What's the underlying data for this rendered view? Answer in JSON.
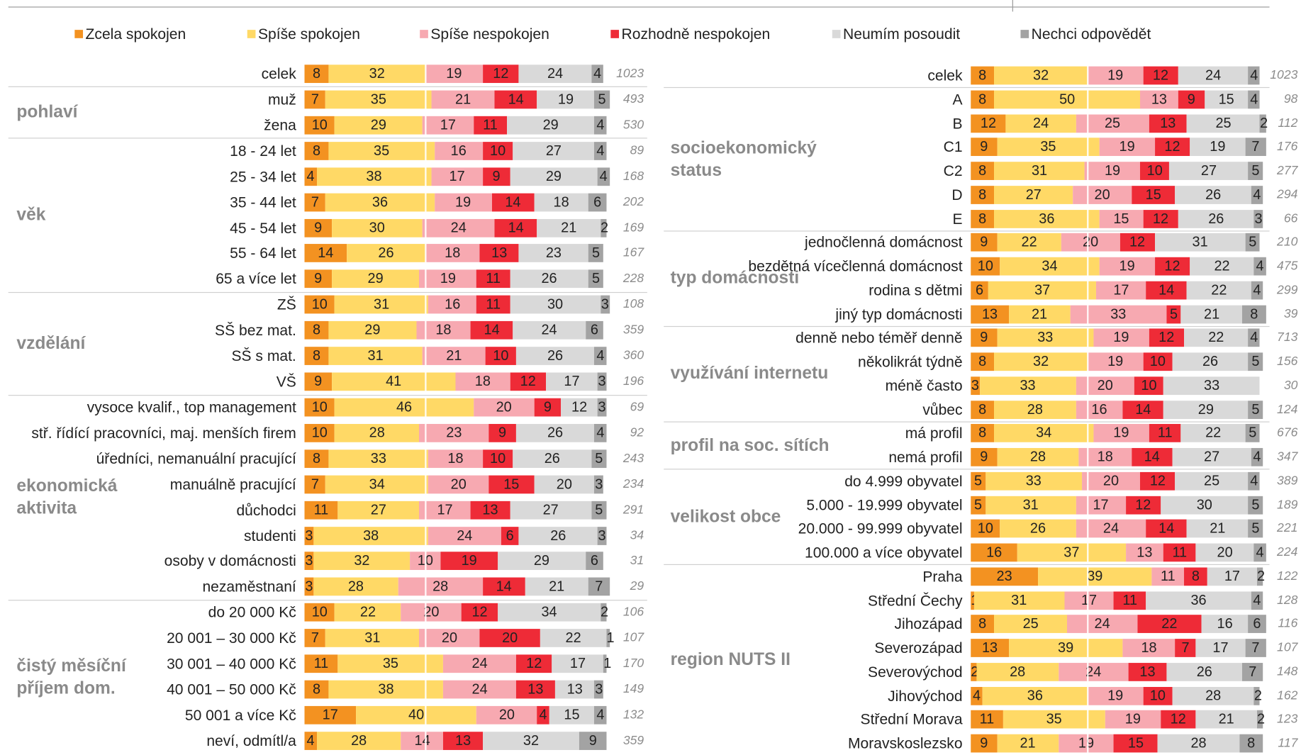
{
  "chart_data": [
    {
      "type": "bar",
      "stacked": true,
      "orientation": "horizontal",
      "xlim": [
        0,
        100
      ],
      "reference_line": 40,
      "series": [
        {
          "name": "Zcela spokojen",
          "color": "#f39221",
          "values": [
            8,
            7,
            10,
            8,
            4,
            7,
            9,
            14,
            9,
            10,
            8,
            8,
            9,
            10,
            10,
            8,
            7,
            11,
            3,
            3,
            3,
            10,
            7,
            11,
            8,
            17,
            4
          ]
        },
        {
          "name": "Spíše spokojen",
          "color": "#ffd966",
          "values": [
            32,
            35,
            29,
            35,
            38,
            36,
            30,
            26,
            29,
            31,
            29,
            31,
            41,
            46,
            28,
            33,
            34,
            27,
            38,
            32,
            28,
            22,
            31,
            35,
            38,
            40,
            28
          ]
        },
        {
          "name": "Spíše nespokojen",
          "color": "#f7a9b1",
          "values": [
            19,
            21,
            17,
            16,
            17,
            19,
            24,
            18,
            19,
            16,
            18,
            21,
            18,
            20,
            23,
            18,
            20,
            17,
            24,
            10,
            28,
            20,
            20,
            24,
            24,
            20,
            14
          ]
        },
        {
          "name": "Rozhodně nespokojen",
          "color": "#ee2b37",
          "values": [
            12,
            14,
            11,
            10,
            9,
            14,
            14,
            13,
            11,
            11,
            14,
            10,
            12,
            9,
            9,
            10,
            15,
            13,
            6,
            19,
            14,
            12,
            20,
            12,
            13,
            4,
            13
          ]
        },
        {
          "name": "Neumím posoudit",
          "color": "#d9d9d9",
          "values": [
            24,
            19,
            29,
            27,
            29,
            18,
            21,
            23,
            26,
            30,
            24,
            26,
            17,
            12,
            26,
            26,
            20,
            27,
            26,
            29,
            21,
            34,
            22,
            17,
            13,
            15,
            32
          ]
        },
        {
          "name": "Nechci odpovědět",
          "color": "#a3a3a3",
          "values": [
            4,
            5,
            4,
            4,
            4,
            6,
            2,
            5,
            5,
            3,
            6,
            4,
            3,
            3,
            4,
            5,
            3,
            5,
            3,
            6,
            7,
            2,
            1,
            1,
            3,
            4,
            9
          ]
        }
      ],
      "categories": [
        "celek",
        "muž",
        "žena",
        "18 - 24 let",
        "25 - 34 let",
        "35 - 44 let",
        "45 - 54 let",
        "55 - 64 let",
        "65 a více let",
        "ZŠ",
        "SŠ bez mat.",
        "SŠ s mat.",
        "VŠ",
        "vysoce kvalif., top management",
        "stř. řídící pracovníci, maj. menších firem",
        "úředníci, nemanuální pracující",
        "manuálně pracující",
        "důchodci",
        "studenti",
        "osoby v domácnosti",
        "nezaměstnaní",
        "do 20 000 Kč",
        "20 001 – 30 000 Kč",
        "30 001 – 40 000 Kč",
        "40 001 – 50 000 Kč",
        "50 001 a více Kč",
        "neví, odmítl/a"
      ],
      "n": [
        1023,
        493,
        530,
        89,
        168,
        202,
        169,
        167,
        228,
        108,
        359,
        360,
        196,
        69,
        92,
        243,
        234,
        291,
        34,
        31,
        29,
        106,
        107,
        170,
        149,
        132,
        359
      ],
      "groups": [
        {
          "label": null,
          "count": 1
        },
        {
          "label": "pohlaví",
          "count": 2
        },
        {
          "label": "věk",
          "count": 6
        },
        {
          "label": "vzdělání",
          "count": 4
        },
        {
          "label": "ekonomická aktivita",
          "count": 8
        },
        {
          "label": "čistý měsíční příjem dom.",
          "count": 6
        }
      ]
    },
    {
      "type": "bar",
      "stacked": true,
      "orientation": "horizontal",
      "xlim": [
        0,
        100
      ],
      "reference_line": 40,
      "series": [
        {
          "name": "Zcela spokojen",
          "color": "#f39221",
          "values": [
            8,
            8,
            12,
            9,
            8,
            8,
            8,
            9,
            10,
            6,
            13,
            9,
            8,
            3,
            8,
            8,
            9,
            5,
            5,
            10,
            16,
            23,
            1,
            8,
            13,
            2,
            4,
            11,
            9
          ]
        },
        {
          "name": "Spíše spokojen",
          "color": "#ffd966",
          "values": [
            32,
            50,
            24,
            35,
            31,
            27,
            36,
            22,
            34,
            37,
            21,
            33,
            32,
            33,
            28,
            34,
            28,
            33,
            31,
            26,
            37,
            39,
            31,
            25,
            39,
            28,
            36,
            35,
            21
          ]
        },
        {
          "name": "Spíše nespokojen",
          "color": "#f7a9b1",
          "values": [
            19,
            13,
            25,
            19,
            19,
            20,
            15,
            20,
            19,
            17,
            33,
            19,
            19,
            20,
            16,
            19,
            18,
            20,
            17,
            24,
            13,
            11,
            17,
            24,
            18,
            24,
            19,
            19,
            19
          ]
        },
        {
          "name": "Rozhodně nespokojen",
          "color": "#ee2b37",
          "values": [
            12,
            9,
            13,
            12,
            10,
            15,
            12,
            12,
            12,
            14,
            5,
            12,
            10,
            10,
            14,
            11,
            14,
            12,
            12,
            14,
            11,
            8,
            11,
            22,
            7,
            13,
            10,
            12,
            15
          ]
        },
        {
          "name": "Neumím posoudit",
          "color": "#d9d9d9",
          "values": [
            24,
            15,
            25,
            19,
            27,
            26,
            26,
            31,
            22,
            22,
            21,
            22,
            26,
            33,
            29,
            22,
            27,
            25,
            30,
            21,
            20,
            17,
            36,
            16,
            17,
            26,
            28,
            21,
            28
          ]
        },
        {
          "name": "Nechci odpovědět",
          "color": "#a3a3a3",
          "values": [
            4,
            4,
            2,
            7,
            5,
            4,
            3,
            5,
            4,
            4,
            8,
            4,
            5,
            null,
            5,
            5,
            4,
            4,
            5,
            5,
            4,
            2,
            4,
            6,
            7,
            7,
            2,
            2,
            8
          ]
        }
      ],
      "categories": [
        "celek",
        "A",
        "B",
        "C1",
        "C2",
        "D",
        "E",
        "jednočlenná domácnost",
        "bezdětná vícečlenná domácnost",
        "rodina s dětmi",
        "jiný typ domácnosti",
        "denně nebo téměř denně",
        "několikrát týdně",
        "méně často",
        "vůbec",
        "má profil",
        "nemá profil",
        "do 4.999 obyvatel",
        "5.000 - 19.999 obyvatel",
        "20.000 - 99.999 obyvatel",
        "100.000 a více obyvatel",
        "Praha",
        "Střední Čechy",
        "Jihozápad",
        "Severozápad",
        "Severovýchod",
        "Jihovýchod",
        "Střední Morava",
        "Moravskoslezsko"
      ],
      "n": [
        1023,
        98,
        112,
        176,
        277,
        294,
        66,
        210,
        475,
        299,
        39,
        713,
        156,
        30,
        124,
        676,
        347,
        389,
        189,
        221,
        224,
        122,
        128,
        116,
        107,
        148,
        162,
        123,
        117
      ],
      "groups": [
        {
          "label": null,
          "count": 1
        },
        {
          "label": "socioekonomický status",
          "count": 6
        },
        {
          "label": "typ domácnosti",
          "count": 4
        },
        {
          "label": "využívání internetu",
          "count": 4
        },
        {
          "label": "profil na soc. sítích",
          "count": 2
        },
        {
          "label": "velikost obce",
          "count": 4
        },
        {
          "label": "region NUTS II",
          "count": 8
        }
      ]
    }
  ]
}
